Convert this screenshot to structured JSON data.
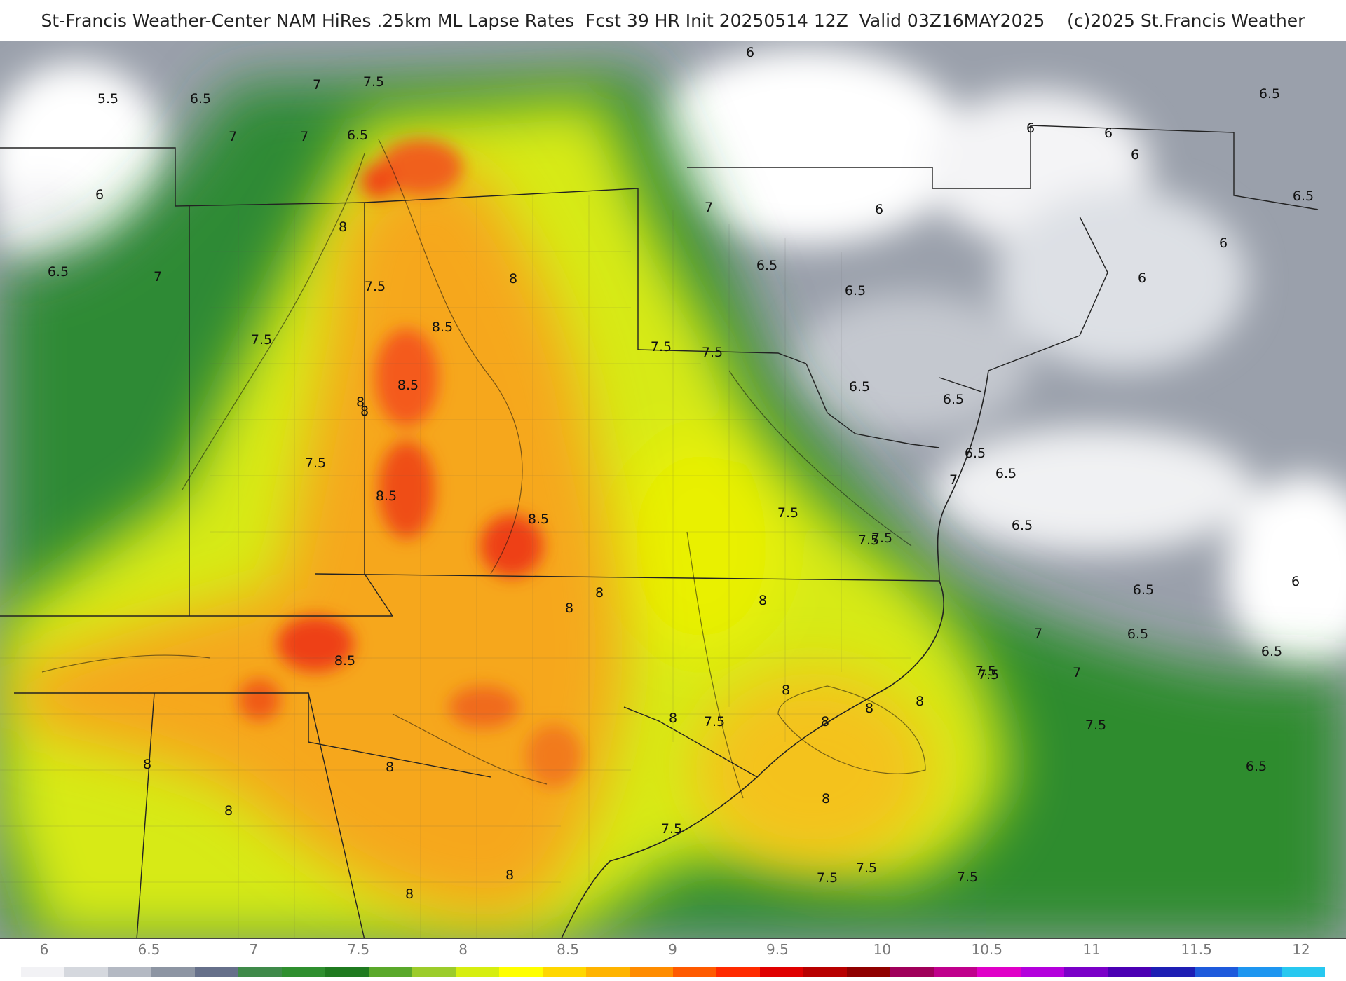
{
  "title": "St-Francis Weather-Center NAM HiRes .25km ML Lapse Rates  Fcst 39 HR Init 20250514 12Z  Valid 03Z16MAY2025    (c)2025 St.Francis Weather",
  "map": {
    "contour_labels": [
      {
        "text": "5.5"
      },
      {
        "text": "6.5"
      },
      {
        "text": "6"
      },
      {
        "text": "6.5"
      },
      {
        "text": "7"
      },
      {
        "text": "7"
      },
      {
        "text": "7.5"
      },
      {
        "text": "7"
      },
      {
        "text": "6.5"
      },
      {
        "text": "7"
      },
      {
        "text": "8"
      },
      {
        "text": "7.5"
      },
      {
        "text": "8"
      },
      {
        "text": "7.5"
      },
      {
        "text": "8"
      },
      {
        "text": "8.5"
      },
      {
        "text": "8.5"
      },
      {
        "text": "8"
      },
      {
        "text": "8.5"
      },
      {
        "text": "8.5"
      },
      {
        "text": "7.5"
      },
      {
        "text": "7"
      },
      {
        "text": "8"
      },
      {
        "text": "8"
      },
      {
        "text": "7.5"
      },
      {
        "text": "8"
      },
      {
        "text": "8"
      },
      {
        "text": "8"
      },
      {
        "text": "8.5"
      },
      {
        "text": "8"
      },
      {
        "text": "8"
      },
      {
        "text": "8"
      },
      {
        "text": "8"
      },
      {
        "text": "7.5"
      },
      {
        "text": "8"
      },
      {
        "text": "8"
      },
      {
        "text": "7.5"
      },
      {
        "text": "7.5"
      },
      {
        "text": "7.5"
      },
      {
        "text": "7.5"
      },
      {
        "text": "7.5"
      },
      {
        "text": "7.5"
      },
      {
        "text": "7.5"
      },
      {
        "text": "8"
      },
      {
        "text": "8"
      },
      {
        "text": "8"
      },
      {
        "text": "7.5"
      },
      {
        "text": "7.5"
      },
      {
        "text": "7.5"
      },
      {
        "text": "7.5"
      },
      {
        "text": "7"
      },
      {
        "text": "6.5"
      },
      {
        "text": "6.5"
      },
      {
        "text": "6.5"
      },
      {
        "text": "6.5"
      },
      {
        "text": "6.5"
      },
      {
        "text": "6.5"
      },
      {
        "text": "6"
      },
      {
        "text": "6.5"
      },
      {
        "text": "6.5"
      },
      {
        "text": "7"
      },
      {
        "text": "6.5"
      },
      {
        "text": "6"
      },
      {
        "text": "6"
      },
      {
        "text": "6"
      },
      {
        "text": "6"
      },
      {
        "text": "6"
      },
      {
        "text": "6"
      },
      {
        "text": "6.5"
      },
      {
        "text": "6.5"
      },
      {
        "text": "6.5"
      },
      {
        "text": "7"
      },
      {
        "text": "6.5"
      },
      {
        "text": "6"
      }
    ]
  },
  "colorbar": {
    "ticks": [
      "6",
      "6.5",
      "7",
      "7.5",
      "8",
      "8.5",
      "9",
      "9.5",
      "10",
      "10.5",
      "11",
      "11.5",
      "12"
    ],
    "colors": [
      "#f2f2f5",
      "#d5d8de",
      "#b4b9c3",
      "#8d95a3",
      "#66708a",
      "#3f8a4a",
      "#2f8f2f",
      "#1f7a1f",
      "#5aa82a",
      "#9ccc2a",
      "#d6ee10",
      "#ffff00",
      "#ffd700",
      "#ffb400",
      "#ff8c00",
      "#ff5a00",
      "#ff2a00",
      "#e00000",
      "#b80000",
      "#900000",
      "#a0005a",
      "#c0008c",
      "#e000c8",
      "#b400dc",
      "#7a00c8",
      "#4b00b4",
      "#1e1eb4",
      "#1e5adc",
      "#1e96f0",
      "#28c8f0"
    ]
  }
}
